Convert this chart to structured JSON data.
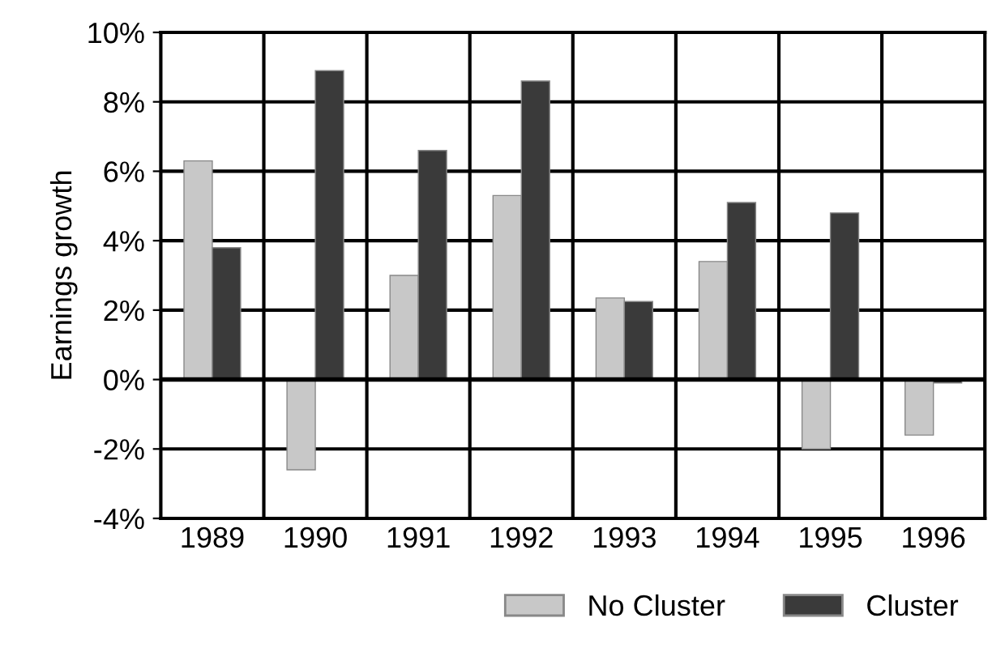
{
  "chart_data": {
    "type": "bar",
    "ylabel": "Earnings growth",
    "categories": [
      "1989",
      "1990",
      "1991",
      "1992",
      "1993",
      "1994",
      "1995",
      "1996"
    ],
    "series": [
      {
        "name": "No Cluster",
        "color": "#c8c8c8",
        "values": [
          6.3,
          -2.6,
          3.0,
          5.3,
          2.35,
          3.4,
          -2.0,
          -1.6
        ]
      },
      {
        "name": "Cluster",
        "color": "#3a3a3a",
        "values": [
          3.8,
          8.9,
          6.6,
          8.6,
          2.25,
          5.1,
          4.8,
          -0.1
        ]
      }
    ],
    "ylim": [
      -4,
      10
    ],
    "yticks": [
      {
        "value": -4,
        "label": "-4%"
      },
      {
        "value": -2,
        "label": "-2%"
      },
      {
        "value": 0,
        "label": "0%"
      },
      {
        "value": 2,
        "label": "2%"
      },
      {
        "value": 4,
        "label": "4%"
      },
      {
        "value": 6,
        "label": "6%"
      },
      {
        "value": 8,
        "label": "8%"
      },
      {
        "value": 10,
        "label": "10%"
      }
    ],
    "grid": true,
    "legend": "bottom right"
  }
}
